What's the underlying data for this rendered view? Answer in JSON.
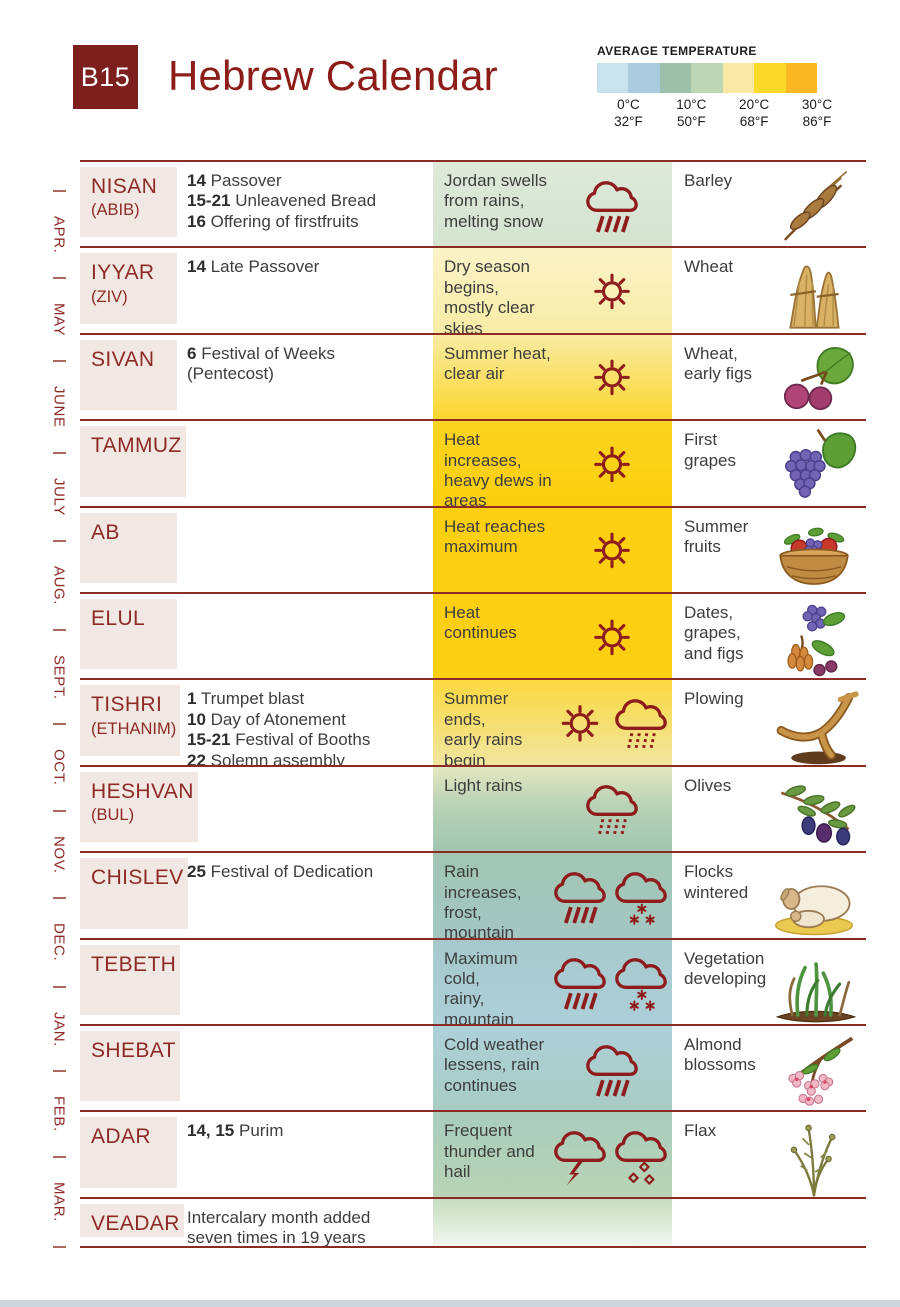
{
  "header": {
    "badge": "B15",
    "title": "Hebrew Calendar",
    "legend": {
      "title": "AVERAGE TEMPERATURE",
      "swatches": [
        "#c9e3ed",
        "#aacbdd",
        "#9cc0a9",
        "#bdd6b4",
        "#fae9a6",
        "#fbd929",
        "#fbb823"
      ],
      "ticks": [
        {
          "celsius": "0°C",
          "fahrenheit": "32°F"
        },
        {
          "celsius": "10°C",
          "fahrenheit": "50°F"
        },
        {
          "celsius": "20°C",
          "fahrenheit": "68°F"
        },
        {
          "celsius": "30°C",
          "fahrenheit": "86°F"
        }
      ]
    }
  },
  "gregorian_months": [
    "APR.",
    "MAY",
    "JUNE",
    "JULY",
    "AUG.",
    "SEPT.",
    "OCT.",
    "NOV.",
    "DEC.",
    "JAN.",
    "FEB.",
    "MAR."
  ],
  "colors": {
    "accent_dark_red": "#8c2a24",
    "month_red": "#8e2a26",
    "icon_maroon": "#8e1c1c",
    "month_block_pink": "#f2e8e3",
    "body_text": "#3d3d3d"
  },
  "months": [
    {
      "name": "NISAN",
      "alt": "(ABIB)",
      "festivals": [
        {
          "day": "14",
          "label": "Passover"
        },
        {
          "day": "15-21",
          "label": "Unleavened Bread"
        },
        {
          "day": "16",
          "label": "Offering of firstfruits"
        }
      ],
      "weather": {
        "text": "Jordan swells\nfrom rains,\nmelting snow",
        "icons": [
          "rain"
        ],
        "bg": "linear-gradient(180deg,#dee9d9,#d5e3d1)"
      },
      "crops": {
        "text": "Barley",
        "illustration": "barley"
      }
    },
    {
      "name": "IYYAR",
      "alt": "(ZIV)",
      "festivals": [
        {
          "day": "14",
          "label": "Late Passover"
        }
      ],
      "weather": {
        "text": "Dry season\nbegins,\nmostly clear\nskies",
        "icons": [
          "sun"
        ],
        "bg": "linear-gradient(180deg,#faf3c8,#f8eca6)"
      },
      "crops": {
        "text": "Wheat",
        "illustration": "wheat"
      }
    },
    {
      "name": "SIVAN",
      "alt": "",
      "festivals": [
        {
          "day": "6",
          "label": "Festival of Weeks"
        },
        {
          "day": "",
          "label": "(Pentecost)"
        }
      ],
      "weather": {
        "text": "Summer heat,\nclear air",
        "icons": [
          "sun"
        ],
        "bg": "linear-gradient(180deg,#f8eba3,#fbd62e)"
      },
      "crops": {
        "text": "Wheat,\nearly figs",
        "illustration": "figs"
      }
    },
    {
      "name": "TAMMUZ",
      "alt": "",
      "festivals": [],
      "weather": {
        "text": "Heat increases,\nheavy dews in\nareas",
        "icons": [
          "sun"
        ],
        "bg": "linear-gradient(180deg,#fbd420,#fccf0d)"
      },
      "crops": {
        "text": "First\ngrapes",
        "illustration": "grapes"
      }
    },
    {
      "name": "AB",
      "alt": "",
      "festivals": [],
      "weather": {
        "text": "Heat reaches\nmaximum",
        "icons": [
          "sun"
        ],
        "bg": "#fccf10"
      },
      "crops": {
        "text": "Summer\nfruits",
        "illustration": "fruit-basket"
      }
    },
    {
      "name": "ELUL",
      "alt": "",
      "festivals": [],
      "weather": {
        "text": "Heat continues",
        "icons": [
          "sun"
        ],
        "bg": "#fccf10"
      },
      "crops": {
        "text": "Dates,\ngrapes,\nand figs",
        "illustration": "dates-grapes-figs"
      }
    },
    {
      "name": "TISHRI",
      "alt": "(ETHANIM)",
      "festivals": [
        {
          "day": "1",
          "label": "Trumpet blast"
        },
        {
          "day": "10",
          "label": "Day of Atonement"
        },
        {
          "day": "15-21",
          "label": "Festival of Booths"
        },
        {
          "day": "22",
          "label": "Solemn assembly"
        }
      ],
      "weather": {
        "text": "Summer ends,\nearly rains\nbegin",
        "icons": [
          "sun",
          "drizzle"
        ],
        "bg": "linear-gradient(180deg,#fbd93f,#f0e5a0)"
      },
      "crops": {
        "text": "Plowing",
        "illustration": "plow"
      }
    },
    {
      "name": "HESHVAN",
      "alt": "(BUL)",
      "festivals": [],
      "weather": {
        "text": "Light rains",
        "icons": [
          "drizzle"
        ],
        "bg": "linear-gradient(180deg,#e3e7c0 0%,#b9d2b6 45%,#a2c6b2 100%)"
      },
      "crops": {
        "text": "Olives",
        "illustration": "olives"
      }
    },
    {
      "name": "CHISLEV",
      "alt": "",
      "festivals": [
        {
          "day": "25",
          "label": "Festival of Dedication"
        }
      ],
      "weather": {
        "text": "Rain increases,\nfrost,\nmountain\nsnows",
        "icons": [
          "rain",
          "snow"
        ],
        "bg": "linear-gradient(180deg,#a2c6b3,#a3c6c2)"
      },
      "crops": {
        "text": "Flocks\nwintered",
        "illustration": "sheep"
      }
    },
    {
      "name": "TEBETH",
      "alt": "",
      "festivals": [],
      "weather": {
        "text": "Maximum cold,\nrainy,\nmountain\nsnows",
        "icons": [
          "rain",
          "snow"
        ],
        "bg": "linear-gradient(180deg,#a5c9cb,#adcfd9)"
      },
      "crops": {
        "text": "Vegetation\ndeveloping",
        "illustration": "vegetation"
      }
    },
    {
      "name": "SHEBAT",
      "alt": "",
      "festivals": [],
      "weather": {
        "text": "Cold weather\nlessens, rain\ncontinues",
        "icons": [
          "rain"
        ],
        "bg": "linear-gradient(180deg,#aed0d9,#a8ccc3)"
      },
      "crops": {
        "text": "Almond\nblossoms",
        "illustration": "almond"
      }
    },
    {
      "name": "ADAR",
      "alt": "",
      "festivals": [
        {
          "day": "14, 15",
          "label": "Purim"
        }
      ],
      "weather": {
        "text": "Frequent\nthunder and\nhail",
        "icons": [
          "lightning",
          "hail"
        ],
        "bg": "linear-gradient(180deg,#a8ccbe,#b9d4b5)"
      },
      "crops": {
        "text": "Flax",
        "illustration": "flax"
      }
    },
    {
      "name": "VEADAR",
      "alt": "",
      "short": true,
      "festivals": [
        {
          "day": "",
          "label": "Intercalary month added\nseven times in 19 years"
        }
      ],
      "weather": {
        "text": "",
        "icons": [],
        "bg": "linear-gradient(180deg,#c6dcc0,#f2f7ef)"
      },
      "crops": {
        "text": "",
        "illustration": ""
      }
    }
  ]
}
